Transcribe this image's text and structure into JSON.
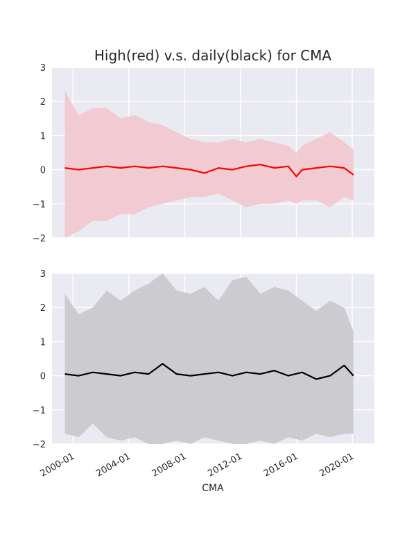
{
  "chart_data": [
    {
      "type": "line",
      "title": "High(red) v.s. daily(black) for CMA",
      "xlabel": "",
      "ylabel": "",
      "ylim": [
        -2,
        3
      ],
      "yticks": [
        "3",
        "2",
        "1",
        "0",
        "−1",
        "−2"
      ],
      "xlim": [
        "1998-07",
        "2021-08"
      ],
      "grid": true,
      "line_color": "#ff0000",
      "band_color": "#f2c4cc",
      "series": [
        {
          "x": [
            "1999-06",
            "2000-06",
            "2001-06",
            "2002-06",
            "2003-06",
            "2004-06",
            "2005-06",
            "2006-06",
            "2007-06",
            "2008-06",
            "2009-06",
            "2010-06",
            "2011-06",
            "2012-06",
            "2013-06",
            "2014-06",
            "2015-06",
            "2016-01",
            "2016-06",
            "2017-06",
            "2018-06",
            "2019-06",
            "2020-02"
          ],
          "mean": [
            0.05,
            0.0,
            0.05,
            0.1,
            0.05,
            0.1,
            0.05,
            0.1,
            0.05,
            0.0,
            -0.1,
            0.05,
            0.0,
            0.1,
            0.15,
            0.05,
            0.1,
            -0.2,
            0.0,
            0.05,
            0.1,
            0.05,
            -0.15
          ],
          "upper": [
            2.3,
            1.6,
            1.8,
            1.8,
            1.5,
            1.6,
            1.4,
            1.3,
            1.1,
            0.9,
            0.8,
            0.8,
            0.9,
            0.8,
            0.9,
            0.8,
            0.7,
            0.5,
            0.7,
            0.9,
            1.1,
            0.8,
            0.6
          ],
          "lower": [
            -2.0,
            -1.8,
            -1.5,
            -1.5,
            -1.3,
            -1.3,
            -1.1,
            -1.0,
            -0.9,
            -0.8,
            -0.8,
            -0.7,
            -0.9,
            -1.1,
            -1.0,
            -1.0,
            -0.9,
            -1.0,
            -0.9,
            -0.9,
            -1.1,
            -0.8,
            -0.9
          ]
        }
      ]
    },
    {
      "type": "line",
      "title": "",
      "xlabel": "CMA",
      "ylabel": "",
      "ylim": [
        -2,
        3
      ],
      "yticks": [
        "3",
        "2",
        "1",
        "0",
        "−1",
        "−2"
      ],
      "xlim": [
        "1998-07",
        "2021-08"
      ],
      "xticks": [
        "2000-01",
        "2004-01",
        "2008-01",
        "2012-01",
        "2016-01",
        "2020-01"
      ],
      "grid": true,
      "line_color": "#000000",
      "band_color": "#c5c5ca",
      "series": [
        {
          "x": [
            "1999-06",
            "2000-06",
            "2001-06",
            "2002-06",
            "2003-06",
            "2004-06",
            "2005-06",
            "2006-06",
            "2007-06",
            "2008-06",
            "2009-06",
            "2010-06",
            "2011-06",
            "2012-06",
            "2013-06",
            "2014-06",
            "2015-06",
            "2016-06",
            "2017-06",
            "2018-06",
            "2019-06",
            "2020-02"
          ],
          "mean": [
            0.05,
            0.0,
            0.1,
            0.05,
            0.0,
            0.1,
            0.05,
            0.35,
            0.05,
            0.0,
            0.05,
            0.1,
            0.0,
            0.1,
            0.05,
            0.15,
            0.0,
            0.1,
            -0.1,
            0.0,
            0.3,
            0.0
          ],
          "upper": [
            2.4,
            1.8,
            2.0,
            2.5,
            2.2,
            2.5,
            2.7,
            3.0,
            2.5,
            2.4,
            2.6,
            2.2,
            2.8,
            2.9,
            2.4,
            2.6,
            2.5,
            2.2,
            1.9,
            2.2,
            2.0,
            1.3
          ],
          "lower": [
            -1.7,
            -1.8,
            -1.4,
            -1.8,
            -1.9,
            -1.8,
            -2.0,
            -2.0,
            -1.9,
            -2.0,
            -1.8,
            -1.9,
            -2.0,
            -2.0,
            -1.9,
            -2.0,
            -1.8,
            -1.9,
            -1.7,
            -1.8,
            -1.7,
            -1.7
          ]
        }
      ]
    }
  ]
}
